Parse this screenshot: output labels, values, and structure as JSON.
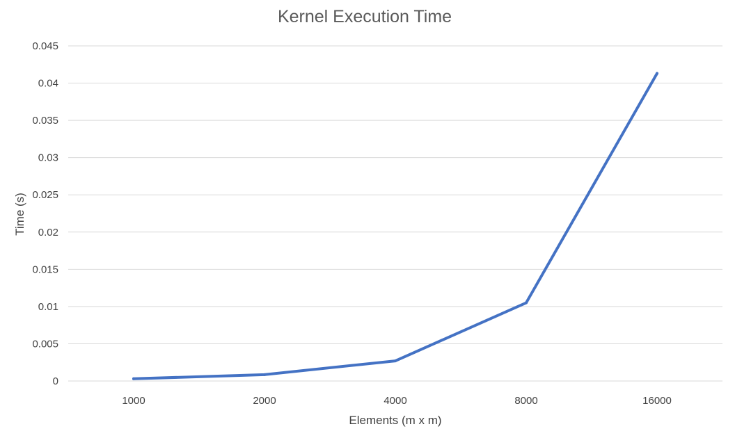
{
  "chart_data": {
    "type": "line",
    "title": "Kernel Execution Time",
    "xlabel": "Elements (m x m)",
    "ylabel": "Time (s)",
    "categories": [
      "1000",
      "2000",
      "4000",
      "8000",
      "16000"
    ],
    "series": [
      {
        "name": "Kernel Execution Time",
        "values": [
          0.0003,
          0.00085,
          0.0027,
          0.0105,
          0.0413
        ]
      }
    ],
    "ylim": [
      0,
      0.045
    ],
    "yticks": [
      "0",
      "0.005",
      "0.01",
      "0.015",
      "0.02",
      "0.025",
      "0.03",
      "0.035",
      "0.04",
      "0.045"
    ],
    "grid": true,
    "legend": "none",
    "colors": {
      "series": "#4472c4"
    }
  }
}
